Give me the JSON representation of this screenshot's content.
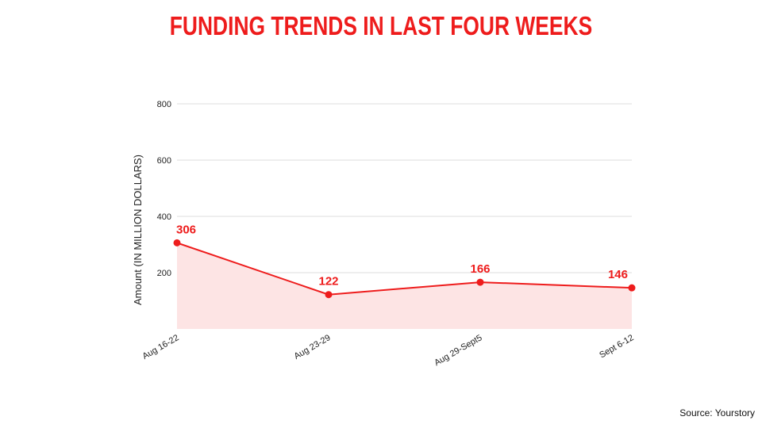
{
  "page": {
    "title": "FUNDING TRENDS IN LAST FOUR WEEKS",
    "source": "Source: Yourstory"
  },
  "colors": {
    "accent": "#ee1c1c",
    "area_fill": "#fde4e4",
    "gridline": "#dddddd"
  },
  "chart_data": {
    "type": "area",
    "title": "FUNDING TRENDS IN LAST FOUR WEEKS",
    "xlabel": "",
    "ylabel": "Amount (IN MILLION DOLLARS)",
    "categories": [
      "Aug 16-22",
      "Aug 23-29",
      "Aug 29-Sept5",
      "Sept 6-12"
    ],
    "values": [
      306,
      122,
      166,
      146
    ],
    "data_labels": [
      "306",
      "122",
      "166",
      "146"
    ],
    "yticks": [
      200,
      400,
      600,
      800
    ],
    "ylim": [
      0,
      800
    ],
    "grid": true,
    "legend": "none"
  }
}
